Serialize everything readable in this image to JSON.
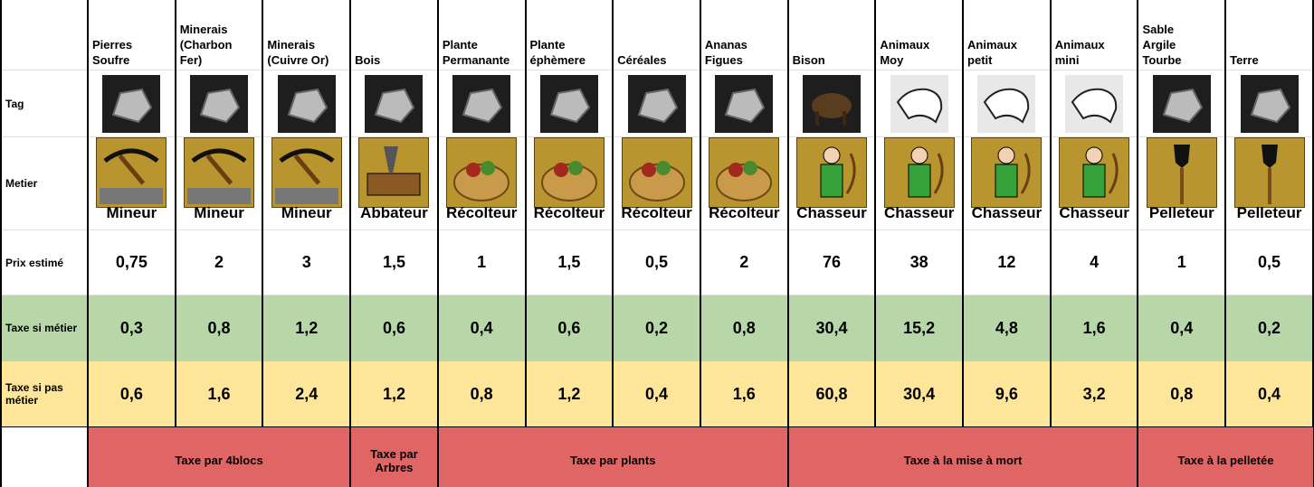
{
  "row_labels": [
    "Tag",
    "Metier",
    "Prix estimé",
    "Taxe si métier",
    "Taxe si pas\nmétier"
  ],
  "columns": [
    {
      "header": "Pierres\nSoufre",
      "metier": "Mineur",
      "prix": "0,75",
      "taxe_metier": "0,3",
      "taxe_pas_metier": "0,6"
    },
    {
      "header": "Minerais\n(Charbon\nFer)",
      "metier": "Mineur",
      "prix": "2",
      "taxe_metier": "0,8",
      "taxe_pas_metier": "1,6"
    },
    {
      "header": "Minerais\n(Cuivre Or)",
      "metier": "Mineur",
      "prix": "3",
      "taxe_metier": "1,2",
      "taxe_pas_metier": "2,4"
    },
    {
      "header": "Bois",
      "metier": "Abbateur",
      "prix": "1,5",
      "taxe_metier": "0,6",
      "taxe_pas_metier": "1,2"
    },
    {
      "header": "Plante\nPermanante",
      "metier": "Récolteur",
      "prix": "1",
      "taxe_metier": "0,4",
      "taxe_pas_metier": "0,8"
    },
    {
      "header": "Plante\néphèmere",
      "metier": "Récolteur",
      "prix": "1,5",
      "taxe_metier": "0,6",
      "taxe_pas_metier": "1,2"
    },
    {
      "header": "Céréales",
      "metier": "Récolteur",
      "prix": "0,5",
      "taxe_metier": "0,2",
      "taxe_pas_metier": "0,4"
    },
    {
      "header": "Ananas\nFigues",
      "metier": "Récolteur",
      "prix": "2",
      "taxe_metier": "0,8",
      "taxe_pas_metier": "1,6"
    },
    {
      "header": "Bison",
      "metier": "Chasseur",
      "prix": "76",
      "taxe_metier": "30,4",
      "taxe_pas_metier": "60,8"
    },
    {
      "header": "Animaux\nMoy",
      "metier": "Chasseur",
      "prix": "38",
      "taxe_metier": "15,2",
      "taxe_pas_metier": "30,4"
    },
    {
      "header": "Animaux\npetit",
      "metier": "Chasseur",
      "prix": "12",
      "taxe_metier": "4,8",
      "taxe_pas_metier": "9,6"
    },
    {
      "header": "Animaux\nmini",
      "metier": "Chasseur",
      "prix": "4",
      "taxe_metier": "1,6",
      "taxe_pas_metier": "3,2"
    },
    {
      "header": "Sable\nArgile\nTourbe",
      "metier": "Pelleteur",
      "prix": "1",
      "taxe_metier": "0,4",
      "taxe_pas_metier": "0,8"
    },
    {
      "header": "Terre",
      "metier": "Pelleteur",
      "prix": "0,5",
      "taxe_metier": "0,2",
      "taxe_pas_metier": "0,4"
    }
  ],
  "groups": [
    "Taxe par 4blocs",
    "Taxe par\nArbres",
    "Taxe par plants",
    "Taxe à la mise à mort",
    "Taxe à la pelletée"
  ]
}
